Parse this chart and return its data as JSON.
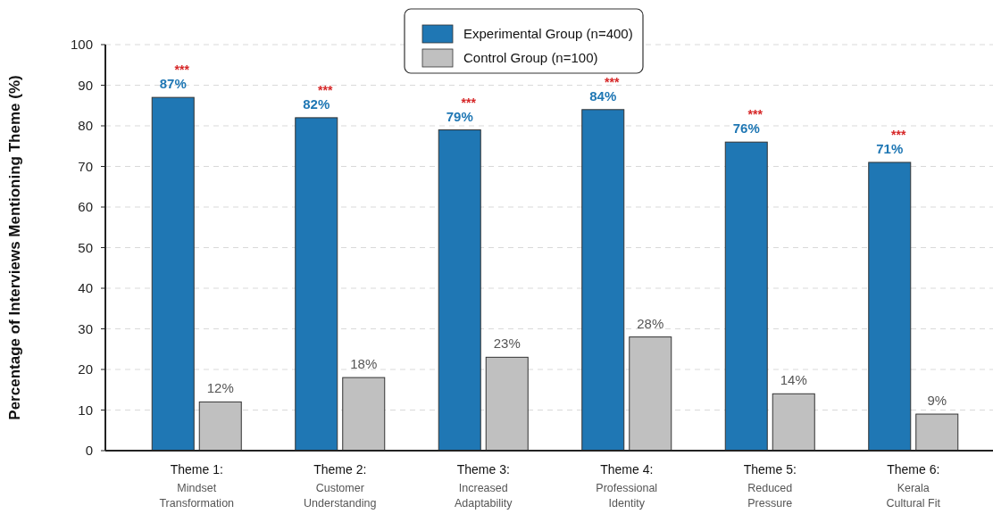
{
  "chart_data": {
    "type": "bar",
    "ylabel": "Percentage of Interviews Mentioning Theme (%)",
    "categories": [
      "Theme 1:\nMindset\nTransformation",
      "Theme 2:\nCustomer\nUnderstanding",
      "Theme 3:\nIncreased\nAdaptability",
      "Theme 4:\nProfessional\nIdentity",
      "Theme 5:\nReduced\nPressure",
      "Theme 6:\nKerala\nCultural Fit"
    ],
    "series": [
      {
        "name": "Experimental Group (n=400)",
        "color": "#1f77b4",
        "values": [
          87,
          82,
          79,
          84,
          76,
          71
        ],
        "value_labels": [
          "87%",
          "82%",
          "79%",
          "84%",
          "76%",
          "71%"
        ]
      },
      {
        "name": "Control Group (n=100)",
        "color": "#c0c0c0",
        "values": [
          12,
          18,
          23,
          28,
          14,
          9
        ],
        "value_labels": [
          "12%",
          "18%",
          "23%",
          "28%",
          "14%",
          "9%"
        ]
      }
    ],
    "annotations": [
      "***",
      "***",
      "***",
      "***",
      "***",
      "***"
    ],
    "ylim": [
      0,
      100
    ],
    "yticks": [
      0,
      10,
      20,
      30,
      40,
      50,
      60,
      70,
      80,
      90,
      100
    ],
    "grid": "y",
    "legend": "top"
  }
}
